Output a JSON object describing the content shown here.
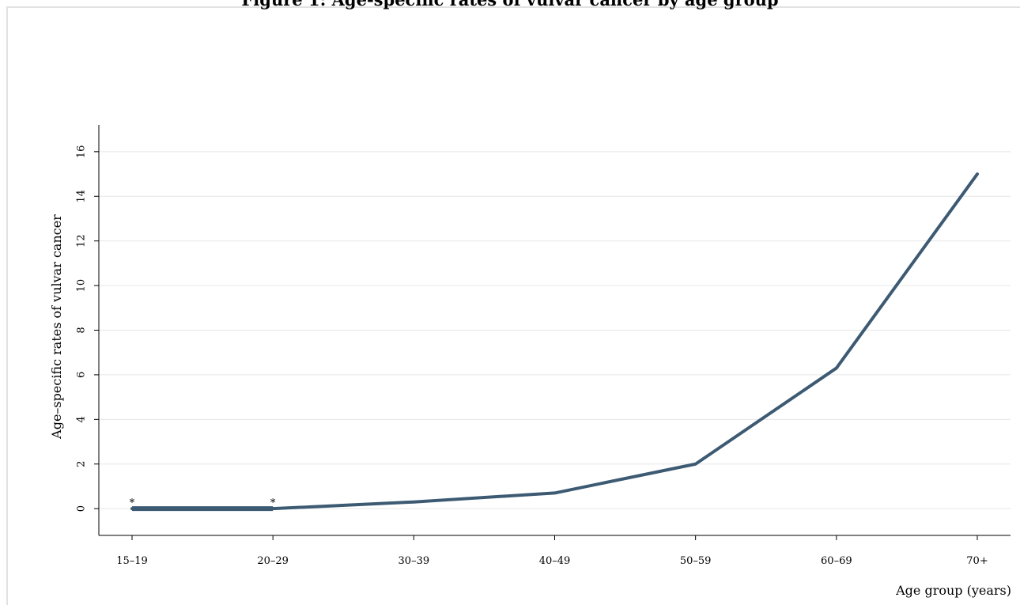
{
  "chart_data": {
    "type": "line",
    "title": "Figure 1: Age-specific rates of vulvar cancer by age group",
    "xlabel": "Age group (years)",
    "ylabel": "Age–specific rates of vulvar cancer",
    "categories": [
      "15–19",
      "20–29",
      "30–39",
      "40–49",
      "50–59",
      "60–69",
      "70+"
    ],
    "yticks": [
      "0",
      "2",
      "4",
      "6",
      "8",
      "10",
      "12",
      "14",
      "16"
    ],
    "ylim": [
      -1.2,
      17.2
    ],
    "grid": true,
    "legend": "none",
    "line_color": "#3d5a73",
    "series": [
      {
        "values": [
          0,
          0,
          0.3,
          0.7,
          2.0,
          6.3,
          15.0
        ]
      }
    ],
    "baseline_values": [
      0,
      0
    ],
    "annotations": [
      {
        "category": "15–19",
        "text": "*"
      },
      {
        "category": "20–29",
        "text": "*"
      }
    ]
  }
}
